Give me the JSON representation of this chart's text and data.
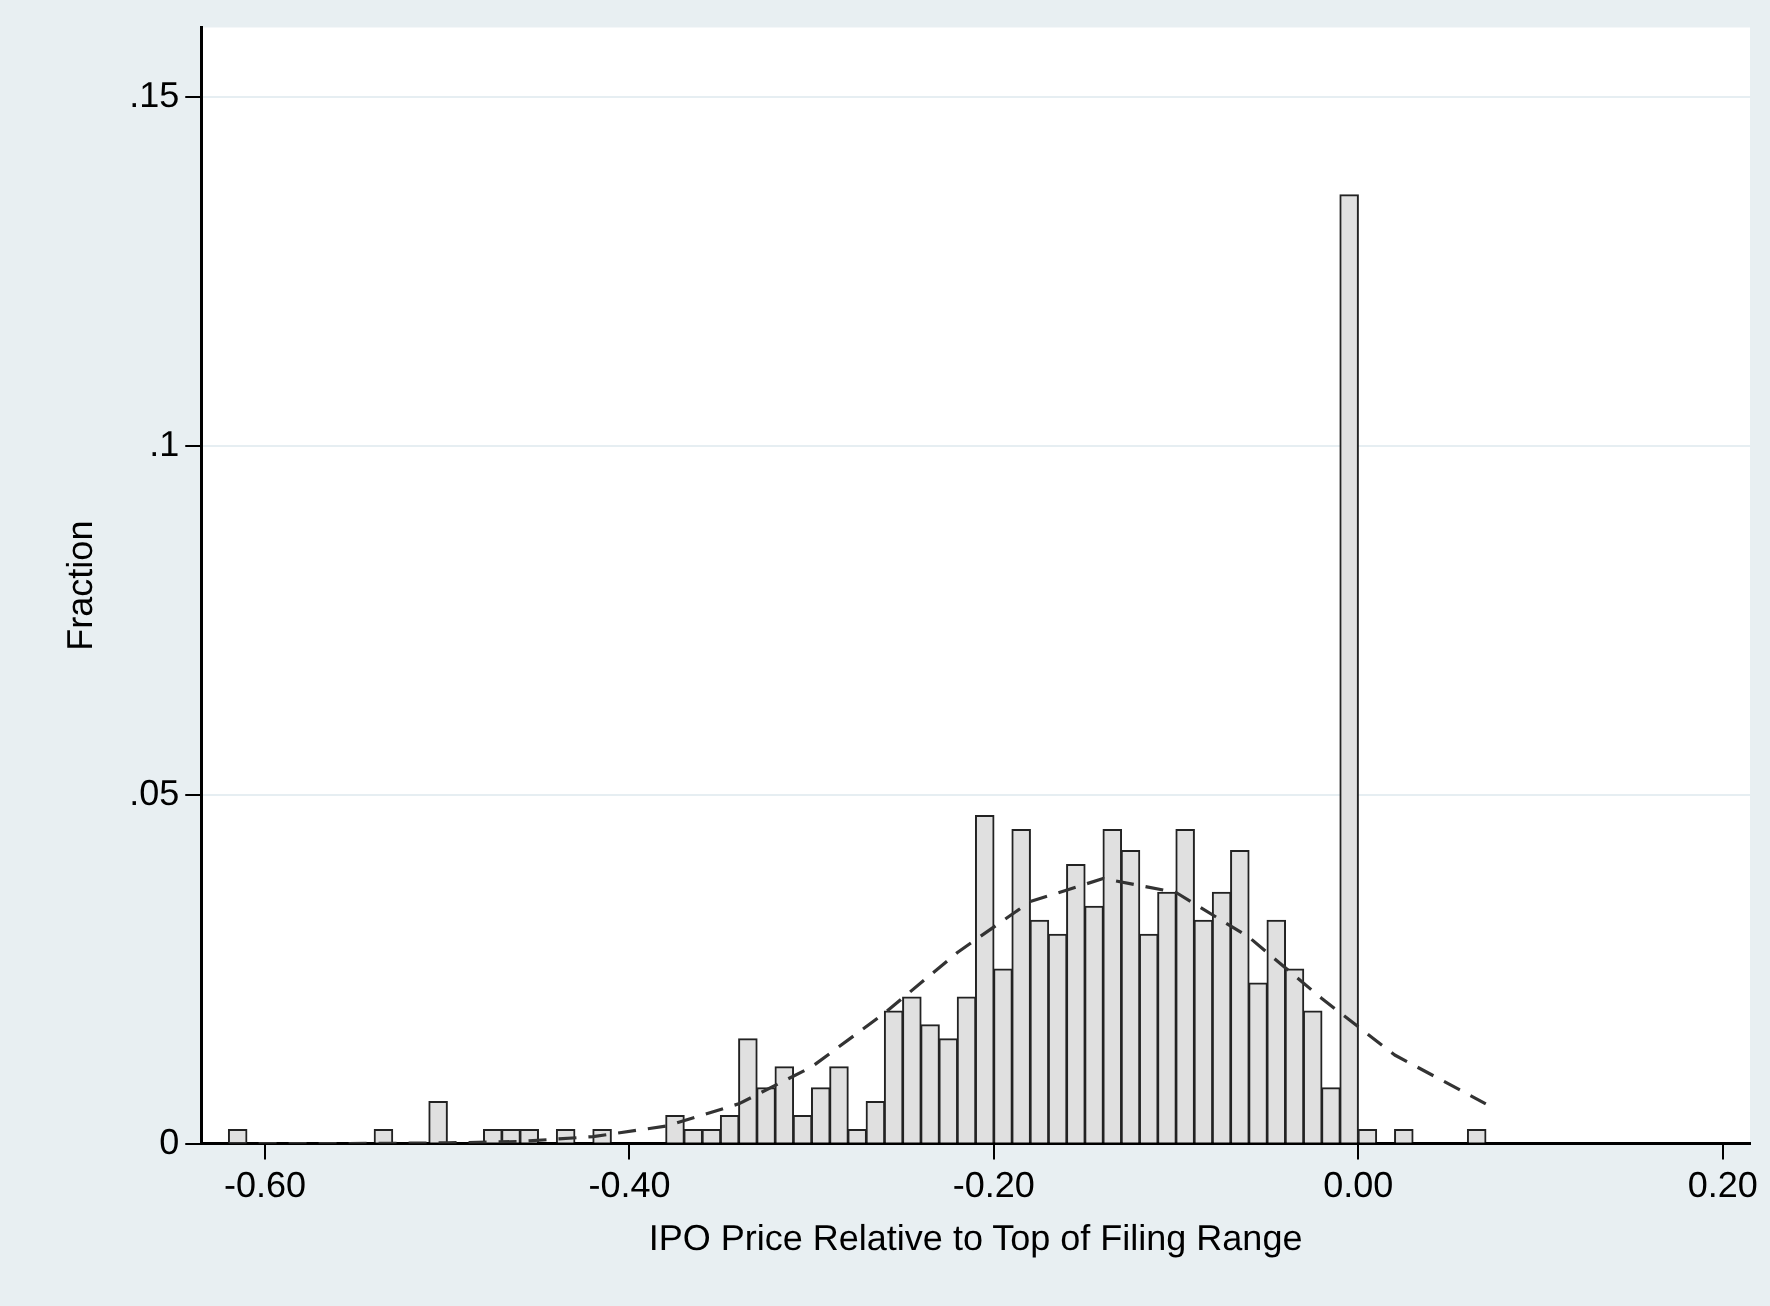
{
  "chart_data": {
    "type": "histogram",
    "xlabel": "IPO Price Relative to Top of Filing Range",
    "ylabel": "Fraction",
    "bins": [
      -0.62,
      -0.61,
      -0.6,
      -0.59,
      -0.58,
      -0.57,
      -0.56,
      -0.55,
      -0.54,
      -0.53,
      -0.52,
      -0.51,
      -0.5,
      -0.49,
      -0.48,
      -0.47,
      -0.46,
      -0.45,
      -0.44,
      -0.43,
      -0.42,
      -0.41,
      -0.4,
      -0.39,
      -0.38,
      -0.37,
      -0.36,
      -0.35,
      -0.34,
      -0.33,
      -0.32,
      -0.31,
      -0.3,
      -0.29,
      -0.28,
      -0.27,
      -0.26,
      -0.25,
      -0.24,
      -0.23,
      -0.22,
      -0.21,
      -0.2,
      -0.19,
      -0.18,
      -0.17,
      -0.16,
      -0.15,
      -0.14,
      -0.13,
      -0.12,
      -0.11,
      -0.1,
      -0.09,
      -0.08,
      -0.07,
      -0.06,
      -0.05,
      -0.04,
      -0.03,
      -0.02,
      -0.01,
      0.0,
      0.01,
      0.02,
      0.03,
      0.04,
      0.05,
      0.06,
      0.07
    ],
    "values": [
      0.002,
      0,
      0,
      0,
      0,
      0,
      0,
      0,
      0.002,
      0,
      0,
      0.006,
      0,
      0,
      0.002,
      0.002,
      0.002,
      0,
      0.002,
      0,
      0.002,
      0,
      0,
      0,
      0.004,
      0.002,
      0.002,
      0.004,
      0.015,
      0.008,
      0.011,
      0.004,
      0.008,
      0.011,
      0.002,
      0.006,
      0.019,
      0.021,
      0.017,
      0.015,
      0.021,
      0.047,
      0.025,
      0.045,
      0.032,
      0.03,
      0.04,
      0.034,
      0.045,
      0.042,
      0.03,
      0.036,
      0.045,
      0.032,
      0.036,
      0.042,
      0.023,
      0.032,
      0.025,
      0.019,
      0.008,
      0.136,
      0.002,
      0,
      0.002,
      0,
      0,
      0,
      0.002
    ],
    "color": "#e0e0e0",
    "series": [
      {
        "type": "line",
        "color": "#333333",
        "line_style": "dashed",
        "x": [
          -0.62,
          -0.56,
          -0.5,
          -0.46,
          -0.42,
          -0.38,
          -0.34,
          -0.3,
          -0.26,
          -0.22,
          -0.18,
          -0.14,
          -0.1,
          -0.06,
          -0.02,
          0.02,
          0.07
        ],
        "values": [
          0,
          0,
          0.0001,
          0.0003,
          0.001,
          0.0025,
          0.0057,
          0.011,
          0.0187,
          0.0274,
          0.0347,
          0.038,
          0.036,
          0.0296,
          0.0208,
          0.0127,
          0.0057
        ]
      }
    ],
    "xlim": [
      -0.635,
      0.215
    ],
    "xticks": [
      {
        "value": -0.6,
        "label": "-0.60"
      },
      {
        "value": -0.4,
        "label": "-0.40"
      },
      {
        "value": -0.2,
        "label": "-0.20"
      },
      {
        "value": 0,
        "label": "0.00"
      },
      {
        "value": 0.2,
        "label": "0.20"
      }
    ],
    "ylim": [
      0,
      0.16
    ],
    "yticks": [
      0,
      {
        "value": 0.05,
        "label": ".05"
      },
      {
        "value": 0.1,
        "label": ".1"
      },
      {
        "value": 0.15,
        "label": ".15"
      }
    ],
    "grid": "y",
    "legend": false
  }
}
